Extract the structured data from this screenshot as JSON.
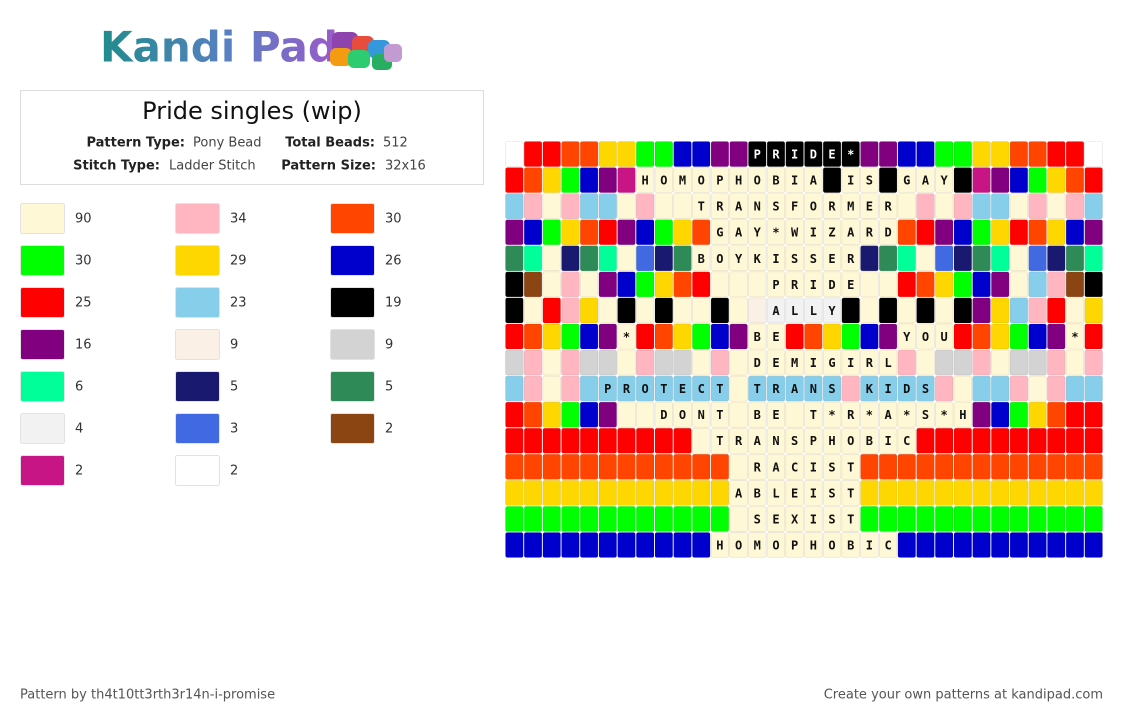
{
  "logo": "Kandi Pad",
  "title": "Pride singles (wip)",
  "info": [
    {
      "label": "Pattern Type:",
      "value": "Pony Bead"
    },
    {
      "label": "Total Beads:",
      "value": "512"
    },
    {
      "label": "Stitch Type:",
      "value": "Ladder Stitch"
    },
    {
      "label": "Pattern Size:",
      "value": "32x16"
    }
  ],
  "legend": [
    {
      "color": "#fff8d6",
      "count": 90
    },
    {
      "color": "#ffb6c1",
      "count": 34
    },
    {
      "color": "#ff4500",
      "count": 30
    },
    {
      "color": "#00ff00",
      "count": 30
    },
    {
      "color": "#ffd700",
      "count": 29
    },
    {
      "color": "#0000cd",
      "count": 26
    },
    {
      "color": "#ff0000",
      "count": 25
    },
    {
      "color": "#87ceeb",
      "count": 23
    },
    {
      "color": "#000000",
      "count": 19
    },
    {
      "color": "#800080",
      "count": 16
    },
    {
      "color": "#faf0e6",
      "count": 9
    },
    {
      "color": "#d3d3d3",
      "count": 9
    },
    {
      "color": "#00ff99",
      "count": 6
    },
    {
      "color": "#191970",
      "count": 5
    },
    {
      "color": "#2e8b57",
      "count": 5
    },
    {
      "color": "#f2f2f2",
      "count": 4
    },
    {
      "color": "#4169e1",
      "count": 3
    },
    {
      "color": "#8b4513",
      "count": 2
    },
    {
      "color": "#c71585",
      "count": 2
    },
    {
      "color": "#ffffff",
      "count": 2
    }
  ],
  "grid": {
    "rows": [
      [
        "#fff",
        "#f00",
        "#f00",
        "#ff4500",
        "#ff4500",
        "#ffd700",
        "#ffd700",
        "#0f0",
        "#0f0",
        "#0000cd",
        "#0000cd",
        "#800080",
        "#800080",
        {
          "color": "#000",
          "label": "P"
        },
        {
          "color": "#000",
          "label": "R"
        },
        {
          "color": "#000",
          "label": "I"
        },
        {
          "color": "#000",
          "label": "D"
        },
        {
          "color": "#000",
          "label": "E"
        },
        {
          "color": "#000",
          "label": "*"
        },
        "#800080",
        "#800080",
        "#0000cd",
        "#0000cd",
        "#0f0",
        "#0f0",
        "#ffd700",
        "#ffd700",
        "#ff4500",
        "#ff4500",
        "#f00",
        "#f00",
        "#fff"
      ],
      [
        "#f00",
        "#ff4500",
        "#ffd700",
        "#0f0",
        "#0000cd",
        "#800080",
        "#c71585",
        {
          "color": "#fff8d6",
          "label": "H"
        },
        {
          "color": "#fff8d6",
          "label": "O"
        },
        {
          "color": "#fff8d6",
          "label": "M"
        },
        {
          "color": "#fff8d6",
          "label": "O"
        },
        {
          "color": "#fff8d6",
          "label": "P"
        },
        {
          "color": "#fff8d6",
          "label": "H"
        },
        {
          "color": "#fff8d6",
          "label": "O"
        },
        {
          "color": "#fff8d6",
          "label": "B"
        },
        {
          "color": "#fff8d6",
          "label": "I"
        },
        {
          "color": "#fff8d6",
          "label": "A"
        },
        "#000",
        {
          "color": "#fff8d6",
          "label": "I"
        },
        {
          "color": "#fff8d6",
          "label": "S"
        },
        "#000",
        {
          "color": "#fff8d6",
          "label": "G"
        },
        {
          "color": "#fff8d6",
          "label": "A"
        },
        {
          "color": "#fff8d6",
          "label": "Y"
        },
        "#000",
        "#c71585",
        "#800080",
        "#0000cd",
        "#0f0",
        "#ffd700",
        "#ff4500",
        "#f00"
      ],
      [
        "#87ceeb",
        "#ffb6c1",
        "#fff8d6",
        "#ffb6c1",
        "#87ceeb",
        "#87ceeb",
        "#fff8d6",
        "#ffb6c1",
        "#fff8d6",
        "#fff8d6",
        {
          "color": "#fff8d6",
          "label": "T"
        },
        {
          "color": "#fff8d6",
          "label": "R"
        },
        {
          "color": "#fff8d6",
          "label": "A"
        },
        {
          "color": "#fff8d6",
          "label": "N"
        },
        {
          "color": "#fff8d6",
          "label": "S"
        },
        {
          "color": "#fff8d6",
          "label": "F"
        },
        {
          "color": "#fff8d6",
          "label": "O"
        },
        {
          "color": "#fff8d6",
          "label": "R"
        },
        {
          "color": "#fff8d6",
          "label": "M"
        },
        {
          "color": "#fff8d6",
          "label": "E"
        },
        {
          "color": "#fff8d6",
          "label": "R"
        },
        "#fff8d6",
        "#ffb6c1",
        "#fff8d6",
        "#ffb6c1",
        "#87ceeb",
        "#87ceeb",
        "#fff8d6",
        "#ffb6c1",
        "#fff8d6",
        "#ffb6c1",
        "#87ceeb"
      ],
      [
        "#800080",
        "#0000cd",
        "#0f0",
        "#ffd700",
        "#ff4500",
        "#f00",
        "#800080",
        "#0000cd",
        "#0f0",
        "#ffd700",
        "#ff4500",
        {
          "color": "#fff8d6",
          "label": "G"
        },
        {
          "color": "#fff8d6",
          "label": "A"
        },
        {
          "color": "#fff8d6",
          "label": "Y"
        },
        {
          "color": "#fff8d6",
          "label": "*"
        },
        {
          "color": "#fff8d6",
          "label": "W"
        },
        {
          "color": "#fff8d6",
          "label": "I"
        },
        {
          "color": "#fff8d6",
          "label": "Z"
        },
        {
          "color": "#fff8d6",
          "label": "A"
        },
        {
          "color": "#fff8d6",
          "label": "R"
        },
        {
          "color": "#fff8d6",
          "label": "D"
        },
        "#ff4500",
        "#f00",
        "#800080",
        "#0000cd",
        "#0f0",
        "#ffd700",
        "#f00",
        "#ff4500",
        "#ffd700",
        "#0000cd",
        "#800080"
      ],
      [
        "#2e8b57",
        "#00ff99",
        "#fff8d6",
        "#191970",
        "#2e8b57",
        "#00ff99",
        "#fff8d6",
        "#4169e1",
        "#191970",
        "#2e8b57",
        {
          "color": "#fff8d6",
          "label": "B"
        },
        {
          "color": "#fff8d6",
          "label": "O"
        },
        {
          "color": "#fff8d6",
          "label": "Y"
        },
        {
          "color": "#fff8d6",
          "label": "K"
        },
        {
          "color": "#fff8d6",
          "label": "I"
        },
        {
          "color": "#fff8d6",
          "label": "S"
        },
        {
          "color": "#fff8d6",
          "label": "S"
        },
        {
          "color": "#fff8d6",
          "label": "E"
        },
        {
          "color": "#fff8d6",
          "label": "R"
        },
        "#191970",
        "#2e8b57",
        "#00ff99",
        "#fff8d6",
        "#4169e1",
        "#191970",
        "#2e8b57",
        "#00ff99",
        "#fff8d6",
        "#4169e1",
        "#191970",
        "#2e8b57",
        "#00ff99"
      ],
      [
        "#000",
        "#8b4513",
        "#fff8d6",
        "#ffb6c1",
        "#fff8d6",
        "#800080",
        "#0000cd",
        "#0f0",
        "#ffd700",
        "#ff4500",
        "#f00",
        "#fff8d6",
        "#fff8d6",
        "#fff8d6",
        {
          "color": "#fff8d6",
          "label": "P"
        },
        {
          "color": "#fff8d6",
          "label": "R"
        },
        {
          "color": "#fff8d6",
          "label": "I"
        },
        {
          "color": "#fff8d6",
          "label": "D"
        },
        {
          "color": "#fff8d6",
          "label": "E"
        },
        "#fff8d6",
        "#fff8d6",
        "#f00",
        "#ff4500",
        "#ffd700",
        "#0f0",
        "#0000cd",
        "#800080",
        "#fff8d6",
        "#87ceeb",
        "#ffb6c1",
        "#8b4513",
        "#000"
      ],
      [
        "#000",
        "#fff8d6",
        "#f00",
        "#ffb6c1",
        "#ffd700",
        "#fff8d6",
        "#000",
        "#fff8d6",
        "#000",
        "#fff8d6",
        "#fff8d6",
        "#000",
        "#fff8d6",
        "#faf0e6",
        {
          "color": "#f2f2f2",
          "label": "A"
        },
        {
          "color": "#f2f2f2",
          "label": "L"
        },
        {
          "color": "#f2f2f2",
          "label": "L"
        },
        {
          "color": "#f2f2f2",
          "label": "Y"
        },
        "#000",
        "#fff8d6",
        "#000",
        "#fff8d6",
        "#000",
        "#fff8d6",
        "#000",
        "#800080",
        "#ffd700",
        "#87ceeb",
        "#ffb6c1",
        "#f00",
        "#fff8d6",
        "#ffd700"
      ],
      [
        "#f00",
        "#ff4500",
        "#ffd700",
        "#0f0",
        "#0000cd",
        "#800080",
        {
          "color": "#fff8d6",
          "label": "*"
        },
        "#f00",
        "#ff4500",
        "#ffd700",
        "#0f0",
        "#0000cd",
        "#800080",
        {
          "color": "#fff8d6",
          "label": "B"
        },
        {
          "color": "#fff8d6",
          "label": "E"
        },
        "#f00",
        "#ff4500",
        "#ffd700",
        "#0f0",
        "#0000cd",
        "#800080",
        {
          "color": "#fff8d6",
          "label": "Y"
        },
        {
          "color": "#fff8d6",
          "label": "O"
        },
        {
          "color": "#fff8d6",
          "label": "U"
        },
        "#f00",
        "#ff4500",
        "#ffd700",
        "#0f0",
        "#0000cd",
        "#800080",
        {
          "color": "#fff8d6",
          "label": "*"
        },
        "#f00"
      ],
      [
        "#d3d3d3",
        "#ffb6c1",
        "#fff8d6",
        "#ffb6c1",
        "#d3d3d3",
        "#d3d3d3",
        "#fff8d6",
        "#ffb6c1",
        "#d3d3d3",
        "#d3d3d3",
        "#fff8d6",
        "#ffb6c1",
        "#fff8d6",
        {
          "color": "#fff8d6",
          "label": "D"
        },
        {
          "color": "#fff8d6",
          "label": "E"
        },
        {
          "color": "#fff8d6",
          "label": "M"
        },
        {
          "color": "#fff8d6",
          "label": "I"
        },
        {
          "color": "#fff8d6",
          "label": "G"
        },
        {
          "color": "#fff8d6",
          "label": "I"
        },
        {
          "color": "#fff8d6",
          "label": "R"
        },
        {
          "color": "#fff8d6",
          "label": "L"
        },
        "#ffb6c1",
        "#fff8d6",
        "#d3d3d3",
        "#d3d3d3",
        "#ffb6c1",
        "#fff8d6",
        "#d3d3d3",
        "#d3d3d3",
        "#ffb6c1",
        "#fff8d6",
        "#ffb6c1"
      ],
      [
        "#87ceeb",
        "#ffb6c1",
        "#fff8d6",
        "#ffb6c1",
        "#87ceeb",
        {
          "color": "#87ceeb",
          "label": "P"
        },
        {
          "color": "#87ceeb",
          "label": "R"
        },
        {
          "color": "#87ceeb",
          "label": "O"
        },
        {
          "color": "#87ceeb",
          "label": "T"
        },
        {
          "color": "#87ceeb",
          "label": "E"
        },
        {
          "color": "#87ceeb",
          "label": "C"
        },
        {
          "color": "#87ceeb",
          "label": "T"
        },
        "#fff8d6",
        {
          "color": "#87ceeb",
          "label": "T"
        },
        {
          "color": "#87ceeb",
          "label": "R"
        },
        {
          "color": "#87ceeb",
          "label": "A"
        },
        {
          "color": "#87ceeb",
          "label": "N"
        },
        {
          "color": "#87ceeb",
          "label": "S"
        },
        "#ffb6c1",
        {
          "color": "#87ceeb",
          "label": "K"
        },
        {
          "color": "#87ceeb",
          "label": "I"
        },
        {
          "color": "#87ceeb",
          "label": "D"
        },
        {
          "color": "#87ceeb",
          "label": "S"
        },
        "#ffb6c1",
        "#fff8d6",
        "#87ceeb",
        "#87ceeb",
        "#ffb6c1",
        "#fff8d6",
        "#ffb6c1",
        "#87ceeb",
        "#87ceeb"
      ],
      [
        "#f00",
        "#ff4500",
        "#ffd700",
        "#0f0",
        "#0000cd",
        "#800080",
        "#fff8d6",
        "#fff8d6",
        {
          "color": "#fff8d6",
          "label": "D"
        },
        {
          "color": "#fff8d6",
          "label": "O"
        },
        {
          "color": "#fff8d6",
          "label": "N"
        },
        {
          "color": "#fff8d6",
          "label": "T"
        },
        "#fff8d6",
        {
          "color": "#fff8d6",
          "label": "B"
        },
        {
          "color": "#fff8d6",
          "label": "E"
        },
        "#fff8d6",
        {
          "color": "#fff8d6",
          "label": "T"
        },
        {
          "color": "#fff8d6",
          "label": "*"
        },
        {
          "color": "#fff8d6",
          "label": "R"
        },
        {
          "color": "#fff8d6",
          "label": "*"
        },
        {
          "color": "#fff8d6",
          "label": "A"
        },
        {
          "color": "#fff8d6",
          "label": "*"
        },
        {
          "color": "#fff8d6",
          "label": "S"
        },
        {
          "color": "#fff8d6",
          "label": "*"
        },
        {
          "color": "#fff8d6",
          "label": "H"
        },
        "#800080",
        "#0000cd",
        "#0f0",
        "#ffd700",
        "#ff4500",
        "#f00",
        "#f00"
      ],
      [
        "#f00",
        "#f00",
        "#f00",
        "#f00",
        "#f00",
        "#f00",
        "#f00",
        "#f00",
        "#f00",
        "#f00",
        "#fff8d6",
        {
          "color": "#fff8d6",
          "label": "T"
        },
        {
          "color": "#fff8d6",
          "label": "R"
        },
        {
          "color": "#fff8d6",
          "label": "A"
        },
        {
          "color": "#fff8d6",
          "label": "N"
        },
        {
          "color": "#fff8d6",
          "label": "S"
        },
        {
          "color": "#fff8d6",
          "label": "P"
        },
        {
          "color": "#fff8d6",
          "label": "H"
        },
        {
          "color": "#fff8d6",
          "label": "O"
        },
        {
          "color": "#fff8d6",
          "label": "B"
        },
        {
          "color": "#fff8d6",
          "label": "I"
        },
        {
          "color": "#fff8d6",
          "label": "C"
        },
        "#f00",
        "#f00",
        "#f00",
        "#f00",
        "#f00",
        "#f00",
        "#f00",
        "#f00",
        "#f00",
        "#f00"
      ],
      [
        "#ff4500",
        "#ff4500",
        "#ff4500",
        "#ff4500",
        "#ff4500",
        "#ff4500",
        "#ff4500",
        "#ff4500",
        "#ff4500",
        "#ff4500",
        "#ff4500",
        "#ff4500",
        "#fff8d6",
        {
          "color": "#fff8d6",
          "label": "R"
        },
        {
          "color": "#fff8d6",
          "label": "A"
        },
        {
          "color": "#fff8d6",
          "label": "C"
        },
        {
          "color": "#fff8d6",
          "label": "I"
        },
        {
          "color": "#fff8d6",
          "label": "S"
        },
        {
          "color": "#fff8d6",
          "label": "T"
        },
        "#ff4500",
        "#ff4500",
        "#ff4500",
        "#ff4500",
        "#ff4500",
        "#ff4500",
        "#ff4500",
        "#ff4500",
        "#ff4500",
        "#ff4500",
        "#ff4500",
        "#ff4500",
        "#ff4500"
      ],
      [
        "#ffd700",
        "#ffd700",
        "#ffd700",
        "#ffd700",
        "#ffd700",
        "#ffd700",
        "#ffd700",
        "#ffd700",
        "#ffd700",
        "#ffd700",
        "#ffd700",
        "#ffd700",
        {
          "color": "#fff8d6",
          "label": "A"
        },
        {
          "color": "#fff8d6",
          "label": "B"
        },
        {
          "color": "#fff8d6",
          "label": "L"
        },
        {
          "color": "#fff8d6",
          "label": "E"
        },
        {
          "color": "#fff8d6",
          "label": "I"
        },
        {
          "color": "#fff8d6",
          "label": "S"
        },
        {
          "color": "#fff8d6",
          "label": "T"
        },
        "#ffd700",
        "#ffd700",
        "#ffd700",
        "#ffd700",
        "#ffd700",
        "#ffd700",
        "#ffd700",
        "#ffd700",
        "#ffd700",
        "#ffd700",
        "#ffd700",
        "#ffd700",
        "#ffd700"
      ],
      [
        "#0f0",
        "#0f0",
        "#0f0",
        "#0f0",
        "#0f0",
        "#0f0",
        "#0f0",
        "#0f0",
        "#0f0",
        "#0f0",
        "#0f0",
        "#0f0",
        "#fff8d6",
        {
          "color": "#fff8d6",
          "label": "S"
        },
        {
          "color": "#fff8d6",
          "label": "E"
        },
        {
          "color": "#fff8d6",
          "label": "X"
        },
        {
          "color": "#fff8d6",
          "label": "I"
        },
        {
          "color": "#fff8d6",
          "label": "S"
        },
        {
          "color": "#fff8d6",
          "label": "T"
        },
        "#0f0",
        "#0f0",
        "#0f0",
        "#0f0",
        "#0f0",
        "#0f0",
        "#0f0",
        "#0f0",
        "#0f0",
        "#0f0",
        "#0f0",
        "#0f0",
        "#0f0"
      ],
      [
        "#0000cd",
        "#0000cd",
        "#0000cd",
        "#0000cd",
        "#0000cd",
        "#0000cd",
        "#0000cd",
        "#0000cd",
        "#0000cd",
        "#0000cd",
        "#0000cd",
        {
          "color": "#fff8d6",
          "label": "H"
        },
        {
          "color": "#fff8d6",
          "label": "O"
        },
        {
          "color": "#fff8d6",
          "label": "M"
        },
        {
          "color": "#fff8d6",
          "label": "O"
        },
        {
          "color": "#fff8d6",
          "label": "P"
        },
        {
          "color": "#fff8d6",
          "label": "H"
        },
        {
          "color": "#fff8d6",
          "label": "O"
        },
        {
          "color": "#fff8d6",
          "label": "B"
        },
        {
          "color": "#fff8d6",
          "label": "I"
        },
        {
          "color": "#fff8d6",
          "label": "C"
        },
        "#0000cd",
        "#0000cd",
        "#0000cd",
        "#0000cd",
        "#0000cd",
        "#0000cd",
        "#0000cd",
        "#0000cd",
        "#0000cd",
        "#0000cd",
        "#0000cd"
      ]
    ]
  },
  "footer": {
    "left": "Pattern by th4t10tt3rth3r14n-i-promise",
    "right": "Create your own patterns at kandipad.com"
  }
}
